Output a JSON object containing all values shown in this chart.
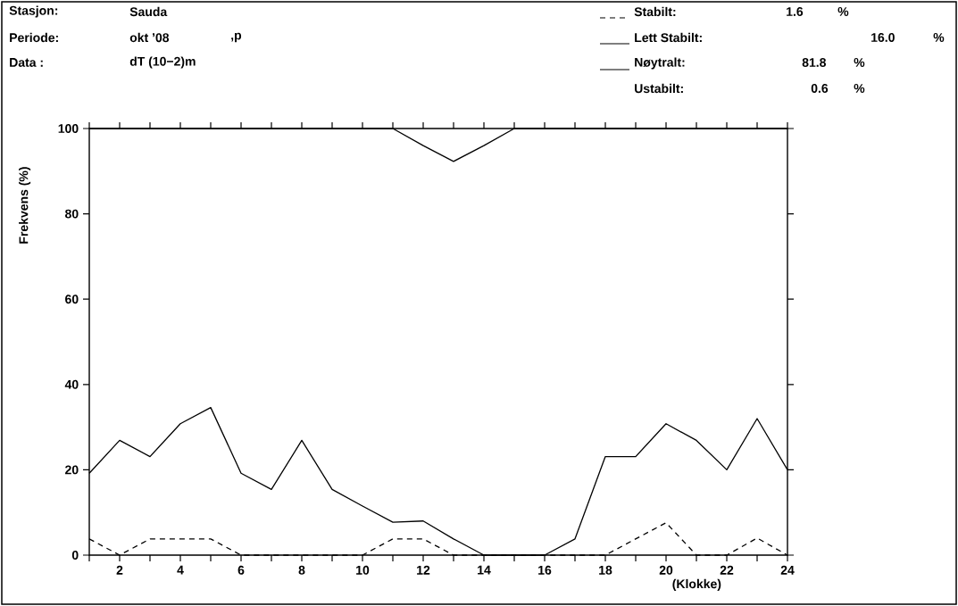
{
  "chart_data": {
    "type": "line",
    "x": [
      1,
      2,
      3,
      4,
      5,
      6,
      7,
      8,
      9,
      10,
      11,
      12,
      13,
      14,
      15,
      16,
      17,
      18,
      19,
      20,
      21,
      22,
      23,
      24
    ],
    "series": [
      {
        "name": "Stabilt:",
        "color": "#000000",
        "line_style": "dashed",
        "values": [
          3.8,
          0,
          3.8,
          3.8,
          3.8,
          0,
          0,
          0,
          0,
          0,
          3.8,
          3.8,
          0,
          0,
          0,
          0,
          0,
          0,
          3.8,
          7.6,
          0,
          0,
          4,
          0
        ]
      },
      {
        "name": "Lett Stabilt:",
        "color": "#000000",
        "line_style": "solid",
        "values": [
          19.2,
          26.9,
          23.1,
          30.8,
          34.6,
          19.2,
          15.4,
          26.9,
          15.4,
          11.5,
          7.7,
          8,
          3.8,
          0,
          0,
          0,
          3.8,
          23.1,
          23.1,
          30.8,
          26.9,
          20,
          32,
          20
        ]
      },
      {
        "name": "Nøytralt:",
        "color": "#000000",
        "line_style": "solid",
        "values": [
          100,
          100,
          100,
          100,
          100,
          100,
          100,
          100,
          100,
          100,
          100,
          96,
          92.3,
          96,
          100,
          100,
          100,
          100,
          100,
          100,
          100,
          100,
          100,
          100
        ]
      }
    ],
    "xlim": [
      1,
      24
    ],
    "xticks": [
      {
        "value": 1,
        "label": null
      },
      2,
      {
        "value": 3,
        "label": null
      },
      4,
      {
        "value": 5,
        "label": null
      },
      6,
      {
        "value": 7,
        "label": null
      },
      8,
      {
        "value": 9,
        "label": null
      },
      10,
      {
        "value": 11,
        "label": null
      },
      12,
      {
        "value": 13,
        "label": null
      },
      14,
      {
        "value": 15,
        "label": null
      },
      16,
      {
        "value": 17,
        "label": null
      },
      18,
      {
        "value": 19,
        "label": null
      },
      20,
      {
        "value": 21,
        "label": null
      },
      22,
      {
        "value": 23,
        "label": null
      },
      24
    ],
    "ylim": [
      0,
      100
    ],
    "yticks": [
      0,
      20,
      40,
      60,
      80,
      100
    ],
    "xlabel": "(Klokke)",
    "ylabel": "Frekvens (%)",
    "legend": "top right",
    "grid": false,
    "marker": "none",
    "annotations": [
      "Stasjon:",
      "Sauda",
      "Periode:",
      "okt ’08",
      ",p",
      "Data  :",
      "dT (10−2)m",
      "1.6",
      "%",
      "16.0",
      "%",
      "81.8",
      "%",
      "Ustabilt:",
      "0.6",
      "%"
    ]
  }
}
